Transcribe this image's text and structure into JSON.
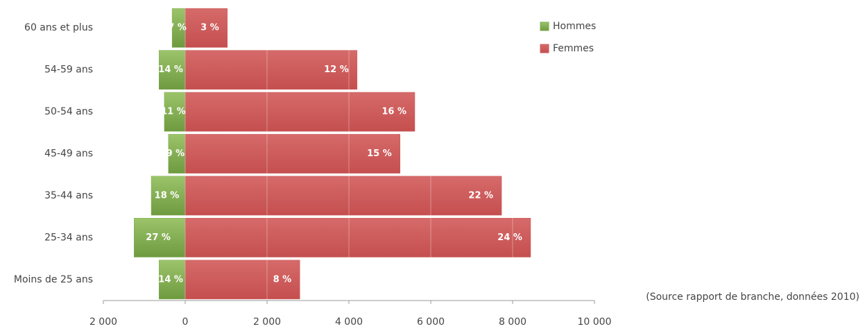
{
  "chart_data": {
    "type": "pyramid",
    "orientation": "horizontal",
    "categories": [
      "60 ans et plus",
      "54-59 ans",
      "50-54 ans",
      "45-49 ans",
      "35-44 ans",
      "25-34 ans",
      "Moins de 25 ans"
    ],
    "series": [
      {
        "name": "Hommes",
        "color": "#7fab4f",
        "values": [
          -320,
          -640,
          -510,
          -410,
          -830,
          -1250,
          -640
        ],
        "data_labels": [
          "7 %",
          "14 %",
          "11 %",
          "9 %",
          "18 %",
          "27 %",
          "14 %"
        ]
      },
      {
        "name": "Femmes",
        "color": "#cd5b5b",
        "values": [
          1030,
          4200,
          5610,
          5250,
          7730,
          8440,
          2800
        ],
        "data_labels": [
          "3 %",
          "12 %",
          "16 %",
          "15 %",
          "22 %",
          "24 %",
          "8 %"
        ]
      }
    ],
    "xlim": [
      -2000,
      10000
    ],
    "xticks": [
      {
        "value": -2000,
        "label": "2 000"
      },
      0,
      {
        "value": 2000,
        "label": "2 000"
      },
      {
        "value": 4000,
        "label": "4 000"
      },
      {
        "value": 6000,
        "label": "6 000"
      },
      {
        "value": 8000,
        "label": "8 000"
      },
      {
        "value": 10000,
        "label": "10 000"
      }
    ],
    "grid": true,
    "legend": "top-right",
    "annotation": "(Source rapport de branche, données 2010)"
  }
}
